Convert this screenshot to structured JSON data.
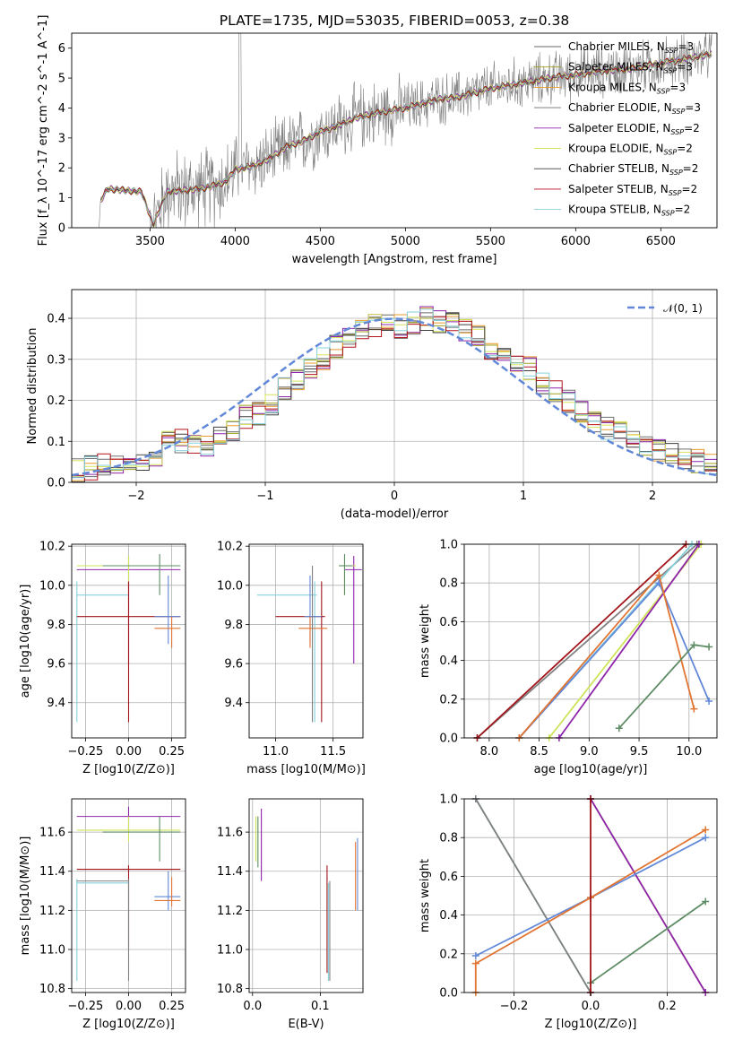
{
  "title": "PLATE=1735, MJD=53035, FIBERID=0053, z=0.38",
  "colors": {
    "Chabrier MILES": "#696969",
    "Salpeter MILES": "#a0a01c",
    "Kroupa MILES": "#e89b2b",
    "Chabrier ELODIE": "#6f6f6f",
    "Salpeter ELODIE": "#8e24aa",
    "Kroupa ELODIE": "#d7e35a",
    "Chabrier STELIB": "#3f3f3f",
    "Salpeter STELIB": "#b3131b",
    "Kroupa STELIB": "#86d0dc",
    "blue": "#6288d8",
    "orange": "#e27432",
    "green": "#5e8c65",
    "purple": "#8e24aa",
    "lime": "#cfe35a",
    "red": "#a1151a",
    "cyan": "#86d0dc",
    "gray": "#808080",
    "dash": "#6288d8"
  },
  "chart_data": [
    {
      "id": "spectrum",
      "type": "line",
      "xlabel": "wavelength [Angstrom, rest frame]",
      "ylabel": "Flux [f_λ 10^-17 erg cm^-2 s^-1 A^-1]",
      "xlim": [
        3040,
        6830
      ],
      "ylim": [
        0,
        6.5
      ],
      "xticks": [
        3500,
        4000,
        4500,
        5000,
        5500,
        6000,
        6500
      ],
      "yticks": [
        0,
        1,
        2,
        3,
        4,
        5,
        6
      ],
      "legend_position": "right",
      "series": [
        {
          "name": "Chabrier MILES",
          "sub": "SSP",
          "nval": "3"
        },
        {
          "name": "Salpeter MILES",
          "sub": "SSP",
          "nval": "3"
        },
        {
          "name": "Kroupa MILES",
          "sub": "SSP",
          "nval": "3"
        },
        {
          "name": "Chabrier ELODIE",
          "sub": "SSP",
          "nval": "3"
        },
        {
          "name": "Salpeter ELODIE",
          "sub": "SSP",
          "nval": "2"
        },
        {
          "name": "Kroupa ELODIE",
          "sub": "SSP",
          "nval": "2"
        },
        {
          "name": "Chabrier STELIB",
          "sub": "SSP",
          "nval": "2"
        },
        {
          "name": "Salpeter STELIB",
          "sub": "SSP",
          "nval": "2"
        },
        {
          "name": "Kroupa STELIB",
          "sub": "SSP",
          "nval": "2"
        }
      ],
      "continuum": {
        "x": [
          3200,
          3210,
          3250,
          3350,
          3450,
          3520,
          3600,
          3700,
          3800,
          3900,
          3950,
          4000,
          4100,
          4200,
          4300,
          4400,
          4500,
          4600,
          4700,
          4800,
          4900,
          5000,
          5100,
          5200,
          5300,
          5400,
          5500,
          5600,
          5700,
          5800,
          5900,
          6000,
          6100,
          6200,
          6300,
          6400,
          6500,
          6600,
          6700,
          6800
        ],
        "y": [
          0,
          0.9,
          1.3,
          1.25,
          1.2,
          0.1,
          1.2,
          1.25,
          1.3,
          1.45,
          1.55,
          1.95,
          2.05,
          2.3,
          2.7,
          2.9,
          3.2,
          3.4,
          3.65,
          3.8,
          3.9,
          4.0,
          4.15,
          4.3,
          4.35,
          4.5,
          4.65,
          4.75,
          4.85,
          4.95,
          5.05,
          5.1,
          5.2,
          5.25,
          5.3,
          5.4,
          5.5,
          5.6,
          5.7,
          5.8
        ]
      }
    },
    {
      "id": "residuals",
      "type": "step",
      "xlabel": "(data-model)/error",
      "ylabel": "Normed distribution",
      "xlim": [
        -2.5,
        2.5
      ],
      "ylim": [
        0,
        0.47
      ],
      "xticks": [
        -2,
        -1,
        0,
        1,
        2
      ],
      "xtick_labels": [
        "−2",
        "−1",
        "0",
        "1",
        "2"
      ],
      "yticks": [
        0.0,
        0.1,
        0.2,
        0.3,
        0.4
      ],
      "legend": "𝒩(0, 1)",
      "legend_position": "top-right",
      "bin_edges_start": -2.5,
      "bin_width": 0.1,
      "hist": [
        0.03,
        0.035,
        0.04,
        0.045,
        0.05,
        0.05,
        0.065,
        0.1,
        0.1,
        0.09,
        0.09,
        0.11,
        0.12,
        0.16,
        0.17,
        0.19,
        0.23,
        0.25,
        0.28,
        0.3,
        0.33,
        0.35,
        0.37,
        0.38,
        0.39,
        0.38,
        0.39,
        0.4,
        0.39,
        0.4,
        0.37,
        0.36,
        0.33,
        0.3,
        0.3,
        0.28,
        0.24,
        0.22,
        0.2,
        0.17,
        0.15,
        0.13,
        0.12,
        0.1,
        0.09,
        0.08,
        0.07,
        0.06,
        0.05,
        0.04
      ]
    },
    {
      "id": "age_Z",
      "type": "errorbar",
      "xlabel": "Z [log10(Z/Z⊙)]",
      "ylabel": "age [log10(age/yr)]",
      "xlim": [
        -0.33,
        0.33
      ],
      "ylim": [
        9.22,
        10.21
      ],
      "xticks": [
        -0.25,
        0.0,
        0.25
      ],
      "xtick_labels": [
        "−0.25",
        "0.00",
        "0.25"
      ],
      "yticks": [
        9.4,
        9.6,
        9.8,
        10.0,
        10.2
      ],
      "points": [
        {
          "c": "purple",
          "x": 0.0,
          "xlo": -0.3,
          "xhi": 0.3,
          "y": 10.08,
          "ylo": 9.6,
          "yhi": 10.15
        },
        {
          "c": "lime",
          "x": 0.0,
          "xlo": -0.3,
          "xhi": 0.3,
          "y": 10.1,
          "ylo": 9.95,
          "yhi": 10.15
        },
        {
          "c": "green",
          "x": 0.18,
          "xlo": -0.15,
          "xhi": 0.3,
          "y": 10.1,
          "ylo": 9.95,
          "yhi": 10.16
        },
        {
          "c": "cyan",
          "x": -0.3,
          "xlo": -0.3,
          "xhi": 0.0,
          "y": 9.95,
          "ylo": 9.3,
          "yhi": 10.02
        },
        {
          "c": "red",
          "x": 0.0,
          "xlo": -0.3,
          "xhi": 0.3,
          "y": 9.84,
          "ylo": 9.3,
          "yhi": 10.02
        },
        {
          "c": "blue",
          "x": 0.23,
          "xlo": 0.15,
          "xhi": 0.3,
          "y": 9.84,
          "ylo": 9.7,
          "yhi": 10.05
        },
        {
          "c": "orange",
          "x": 0.25,
          "xlo": 0.15,
          "xhi": 0.3,
          "y": 9.78,
          "ylo": 9.68,
          "yhi": 9.84
        }
      ]
    },
    {
      "id": "age_mass",
      "type": "errorbar",
      "xlabel": "mass [log10(M/M⊙)]",
      "ylabel": "",
      "xlim": [
        10.77,
        11.76
      ],
      "ylim": [
        9.22,
        10.21
      ],
      "xticks": [
        11.0,
        11.5
      ],
      "xtick_labels": [
        "11.0",
        "11.5"
      ],
      "yticks": [
        9.4,
        9.6,
        9.8,
        10.0,
        10.2
      ],
      "points": [
        {
          "c": "purple",
          "x": 11.68,
          "xlo": 11.6,
          "xhi": 11.75,
          "y": 10.08,
          "ylo": 9.6,
          "yhi": 10.15
        },
        {
          "c": "lime",
          "x": 11.6,
          "xlo": 11.55,
          "xhi": 11.7,
          "y": 10.1,
          "ylo": 9.95,
          "yhi": 10.15
        },
        {
          "c": "green",
          "x": 11.6,
          "xlo": 11.55,
          "xhi": 11.67,
          "y": 10.1,
          "ylo": 9.95,
          "yhi": 10.16
        },
        {
          "c": "cyan",
          "x": 11.34,
          "xlo": 10.84,
          "xhi": 11.36,
          "y": 9.95,
          "ylo": 9.3,
          "yhi": 10.02
        },
        {
          "c": "red",
          "x": 11.4,
          "xlo": 11.0,
          "xhi": 11.43,
          "y": 9.84,
          "ylo": 9.3,
          "yhi": 10.02
        },
        {
          "c": "blue",
          "x": 11.3,
          "xlo": 11.25,
          "xhi": 11.4,
          "y": 9.84,
          "ylo": 9.7,
          "yhi": 10.05
        },
        {
          "c": "orange",
          "x": 11.3,
          "xlo": 11.2,
          "xhi": 11.45,
          "y": 9.78,
          "ylo": 9.68,
          "yhi": 9.84
        },
        {
          "c": "gray",
          "x": 11.32,
          "xlo": 11.32,
          "xhi": 11.32,
          "y": 9.95,
          "ylo": 9.3,
          "yhi": 10.1
        }
      ]
    },
    {
      "id": "mw_age",
      "type": "line",
      "xlabel": "age [log10(age/yr)]",
      "ylabel": "mass weight",
      "xlim": [
        7.75,
        10.28
      ],
      "ylim": [
        0,
        1
      ],
      "xticks": [
        8.0,
        8.5,
        9.0,
        9.5,
        10.0
      ],
      "xtick_labels": [
        "8.0",
        "8.5",
        "9.0",
        "9.5",
        "10.0"
      ],
      "yticks": [
        0.0,
        0.2,
        0.4,
        0.6,
        0.8,
        1.0
      ],
      "series": [
        {
          "c": "gray",
          "x": [
            7.88,
            10.08
          ],
          "y": [
            0,
            1
          ]
        },
        {
          "c": "red",
          "x": [
            7.88,
            9.97
          ],
          "y": [
            0,
            1
          ]
        },
        {
          "c": "cyan",
          "x": [
            8.3,
            10.03
          ],
          "y": [
            0,
            1
          ]
        },
        {
          "c": "lime",
          "x": [
            8.6,
            10.12
          ],
          "y": [
            0,
            1
          ]
        },
        {
          "c": "purple",
          "x": [
            8.7,
            10.1
          ],
          "y": [
            0,
            1
          ]
        },
        {
          "c": "blue",
          "x": [
            8.3,
            9.7,
            10.2
          ],
          "y": [
            0,
            0.8,
            0.19
          ]
        },
        {
          "c": "orange",
          "x": [
            8.3,
            9.7,
            10.05
          ],
          "y": [
            0,
            0.84,
            0.15
          ]
        },
        {
          "c": "green",
          "x": [
            9.3,
            10.05,
            10.2
          ],
          "y": [
            0.05,
            0.48,
            0.47
          ]
        }
      ]
    },
    {
      "id": "mass_Z",
      "type": "errorbar",
      "xlabel": "Z [log10(Z/Z⊙)]",
      "ylabel": "mass [log10(M/M⊙)]",
      "xlim": [
        -0.33,
        0.33
      ],
      "ylim": [
        10.78,
        11.77
      ],
      "xticks": [
        -0.25,
        0.0,
        0.25
      ],
      "xtick_labels": [
        "−0.25",
        "0.00",
        "0.25"
      ],
      "yticks": [
        10.8,
        11.0,
        11.2,
        11.4,
        11.6
      ],
      "points": [
        {
          "c": "purple",
          "x": 0.0,
          "xlo": -0.3,
          "xhi": 0.3,
          "y": 11.68,
          "ylo": 11.6,
          "yhi": 11.73
        },
        {
          "c": "lime",
          "x": 0.0,
          "xlo": -0.3,
          "xhi": 0.3,
          "y": 11.61,
          "ylo": 11.55,
          "yhi": 11.68
        },
        {
          "c": "green",
          "x": 0.18,
          "xlo": -0.15,
          "xhi": 0.3,
          "y": 11.6,
          "ylo": 11.45,
          "yhi": 11.68
        },
        {
          "c": "red",
          "x": 0.0,
          "xlo": -0.3,
          "xhi": 0.3,
          "y": 11.41,
          "ylo": 11.0,
          "yhi": 11.43
        },
        {
          "c": "cyan",
          "x": -0.3,
          "xlo": -0.3,
          "xhi": 0.0,
          "y": 11.34,
          "ylo": 10.84,
          "yhi": 11.36
        },
        {
          "c": "gray",
          "x": 0.0,
          "xlo": -0.3,
          "xhi": 0.0,
          "y": 11.35,
          "ylo": 10.84,
          "yhi": 11.36
        },
        {
          "c": "blue",
          "x": 0.23,
          "xlo": 0.15,
          "xhi": 0.3,
          "y": 11.27,
          "ylo": 11.2,
          "yhi": 11.4
        },
        {
          "c": "orange",
          "x": 0.25,
          "xlo": 0.15,
          "xhi": 0.3,
          "y": 11.25,
          "ylo": 11.22,
          "yhi": 11.37
        }
      ]
    },
    {
      "id": "mass_ebv",
      "type": "errorbar",
      "xlabel": "E(B-V)",
      "ylabel": "",
      "xlim": [
        -0.005,
        0.163
      ],
      "ylim": [
        10.78,
        11.77
      ],
      "xticks": [
        0.0,
        0.1
      ],
      "xtick_labels": [
        "0.0",
        "0.1"
      ],
      "yticks": [
        10.8,
        11.0,
        11.2,
        11.4,
        11.6
      ],
      "points": [
        {
          "c": "purple",
          "x": 0.013,
          "xlo": 0.013,
          "xhi": 0.013,
          "y": 11.6,
          "ylo": 11.35,
          "yhi": 11.72
        },
        {
          "c": "lime",
          "x": 0.005,
          "xlo": 0.005,
          "xhi": 0.005,
          "y": 11.6,
          "ylo": 11.45,
          "yhi": 11.68
        },
        {
          "c": "green",
          "x": 0.008,
          "xlo": 0.008,
          "xhi": 0.008,
          "y": 11.6,
          "ylo": 11.42,
          "yhi": 11.68
        },
        {
          "c": "red",
          "x": 0.11,
          "xlo": 0.11,
          "xhi": 0.11,
          "y": 11.4,
          "ylo": 10.88,
          "yhi": 11.43
        },
        {
          "c": "cyan",
          "x": 0.112,
          "xlo": 0.112,
          "xhi": 0.112,
          "y": 11.3,
          "ylo": 10.84,
          "yhi": 11.34
        },
        {
          "c": "gray",
          "x": 0.114,
          "xlo": 0.114,
          "xhi": 0.114,
          "y": 11.3,
          "ylo": 10.84,
          "yhi": 11.35
        },
        {
          "c": "blue",
          "x": 0.155,
          "xlo": 0.155,
          "xhi": 0.155,
          "y": 11.3,
          "ylo": 11.2,
          "yhi": 11.57
        },
        {
          "c": "orange",
          "x": 0.152,
          "xlo": 0.152,
          "xhi": 0.152,
          "y": 11.28,
          "ylo": 11.2,
          "yhi": 11.55
        }
      ]
    },
    {
      "id": "mw_Z",
      "type": "line",
      "xlabel": "Z [log10(Z/Z⊙)]",
      "ylabel": "mass weight",
      "xlim": [
        -0.33,
        0.33
      ],
      "ylim": [
        0,
        1
      ],
      "xticks": [
        -0.2,
        0.0,
        0.2
      ],
      "xtick_labels": [
        "−0.2",
        "0.0",
        "0.2"
      ],
      "yticks": [
        0.0,
        0.2,
        0.4,
        0.6,
        0.8,
        1.0
      ],
      "series": [
        {
          "c": "cyan",
          "x": [
            -0.3,
            0.0
          ],
          "y": [
            1,
            0
          ]
        },
        {
          "c": "gray",
          "x": [
            -0.3,
            0.0
          ],
          "y": [
            1,
            0
          ]
        },
        {
          "c": "lime",
          "x": [
            0.0,
            0.3
          ],
          "y": [
            1,
            0
          ]
        },
        {
          "c": "purple",
          "x": [
            0.0,
            0.3
          ],
          "y": [
            1,
            0
          ]
        },
        {
          "c": "blue",
          "x": [
            -0.3,
            0.0,
            0.3
          ],
          "y": [
            0.19,
            0.49,
            0.8
          ]
        },
        {
          "c": "orange",
          "x": [
            -0.3,
            -0.3,
            0.0,
            0.3
          ],
          "y": [
            0.0,
            0.15,
            0.49,
            0.84
          ]
        },
        {
          "c": "green",
          "x": [
            0.0,
            0.3
          ],
          "y": [
            0.05,
            0.47
          ]
        },
        {
          "c": "red",
          "x": [
            0.0,
            0.0
          ],
          "y": [
            0,
            1
          ]
        }
      ]
    }
  ]
}
